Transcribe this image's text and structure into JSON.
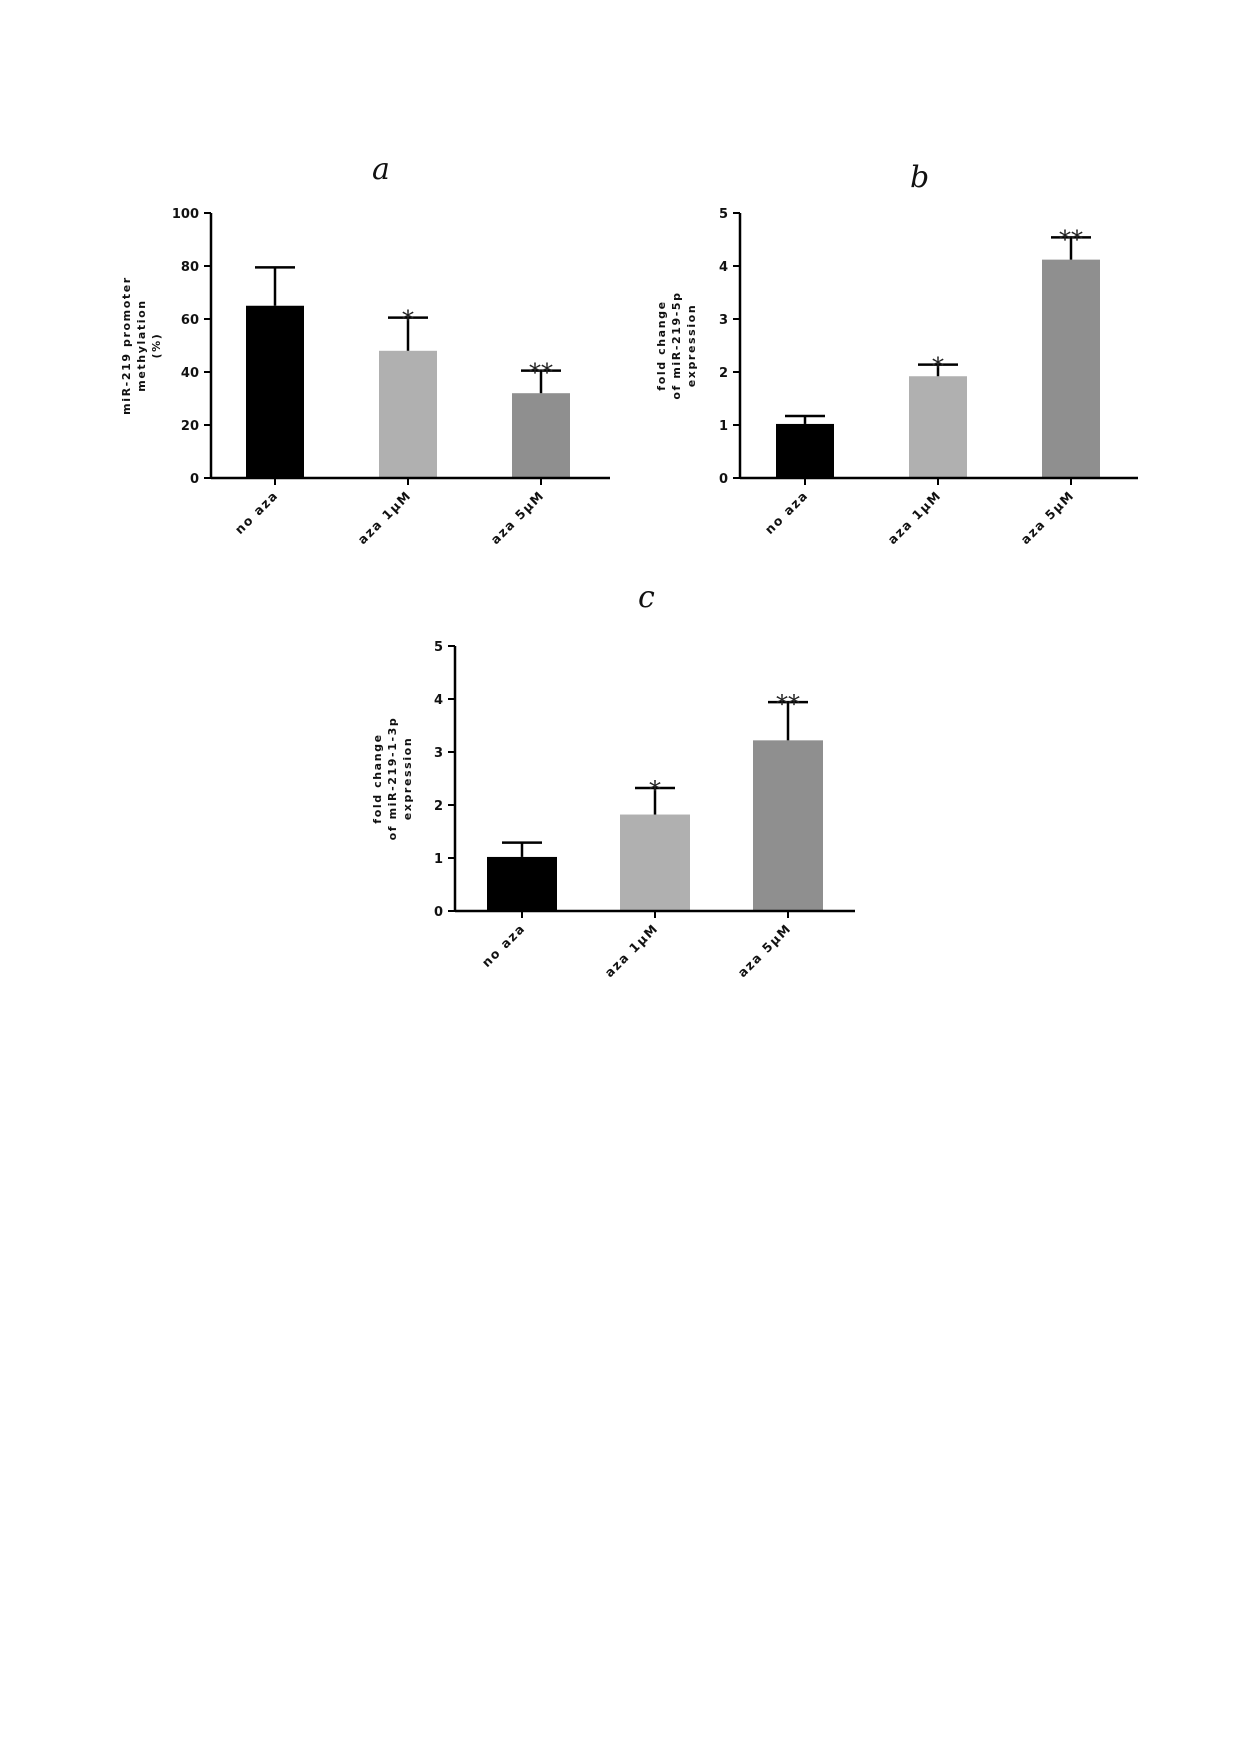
{
  "chart_data": [
    {
      "panel": "a",
      "type": "bar",
      "categories": [
        "no aza",
        "aza 1µM",
        "aza 5µM"
      ],
      "values": [
        65,
        48,
        32
      ],
      "errors": [
        14.5,
        12.5,
        8.5
      ],
      "significance": [
        "",
        "*",
        "**"
      ],
      "colors": [
        "#000000",
        "#b0b0b0",
        "#8f8f8f"
      ],
      "ylabel_lines": [
        "miR-219 promoter",
        "methylation",
        "(%)"
      ],
      "ylim": [
        0,
        100
      ],
      "yticks": [
        0,
        20,
        40,
        60,
        80,
        100
      ],
      "grid": false,
      "legend": "none"
    },
    {
      "panel": "b",
      "type": "bar",
      "categories": [
        "no aza",
        "aza 1µM",
        "aza 5µM"
      ],
      "values": [
        1.02,
        1.92,
        4.12
      ],
      "errors": [
        0.15,
        0.22,
        0.42
      ],
      "significance": [
        "",
        "*",
        "**"
      ],
      "colors": [
        "#000000",
        "#b0b0b0",
        "#8f8f8f"
      ],
      "ylabel_lines": [
        "fold change",
        "of miR-219-5p",
        "expression"
      ],
      "ylim": [
        0,
        5
      ],
      "yticks": [
        0,
        1,
        2,
        3,
        4,
        5
      ],
      "grid": false,
      "legend": "none"
    },
    {
      "panel": "c",
      "type": "bar",
      "categories": [
        "no aza",
        "aza 1µM",
        "aza 5µM"
      ],
      "values": [
        1.02,
        1.82,
        3.22
      ],
      "errors": [
        0.27,
        0.5,
        0.72
      ],
      "significance": [
        "",
        "*",
        "**"
      ],
      "colors": [
        "#000000",
        "#b0b0b0",
        "#8f8f8f"
      ],
      "ylabel_lines": [
        "fold change",
        "of miR-219-1-3p",
        "expression"
      ],
      "ylim": [
        0,
        5
      ],
      "yticks": [
        0,
        1,
        2,
        3,
        4,
        5
      ],
      "grid": false,
      "legend": "none"
    }
  ]
}
